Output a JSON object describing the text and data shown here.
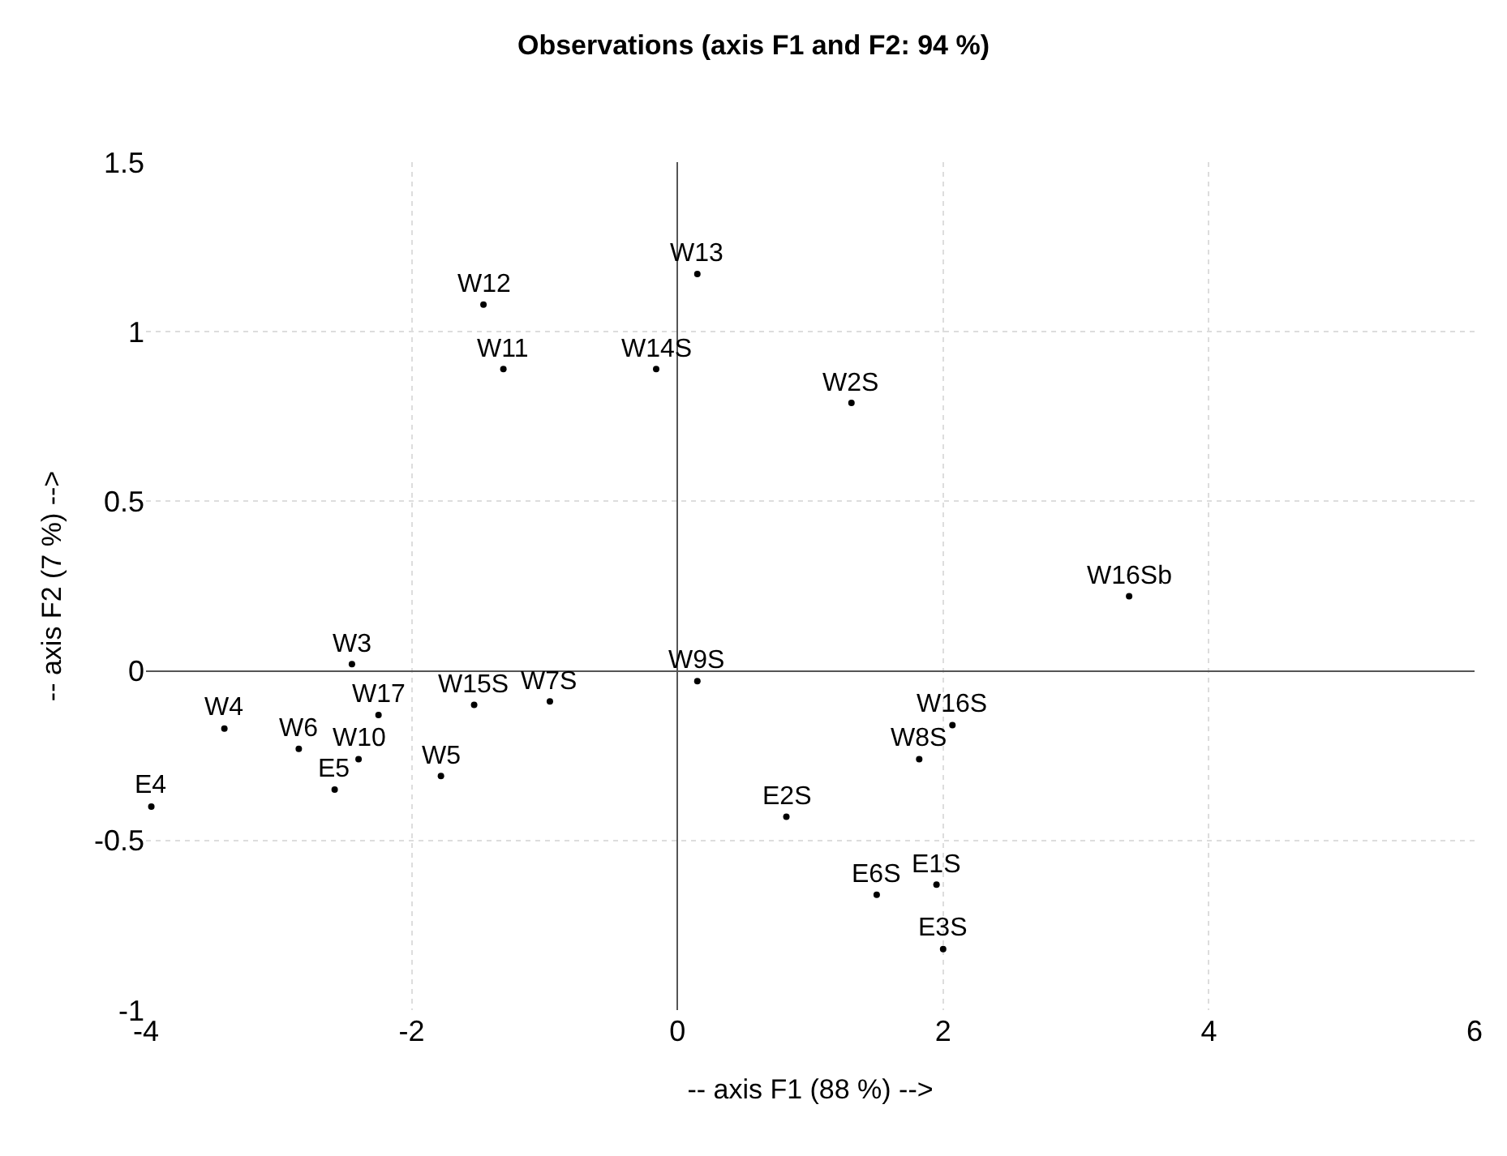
{
  "chart_data": {
    "type": "scatter",
    "title": "Observations (axis F1 and F2: 94 %)",
    "xlabel": "-- axis F1 (88 %) -->",
    "ylabel": "-- axis F2 (7 %) -->",
    "series": [
      {
        "color": "#000000",
        "x": [
          0.15,
          -1.46,
          -1.31,
          -0.16,
          1.31,
          3.4,
          -2.45,
          0.15,
          -3.41,
          -2.25,
          -1.53,
          -0.96,
          -2.85,
          -2.4,
          -1.78,
          -2.58,
          -3.96,
          2.07,
          1.82,
          0.82,
          1.5,
          1.95,
          2.0
        ],
        "values": [
          1.17,
          1.08,
          0.89,
          0.89,
          0.79,
          0.22,
          0.02,
          -0.03,
          -0.17,
          -0.13,
          -0.1,
          -0.09,
          -0.23,
          -0.26,
          -0.31,
          -0.35,
          -0.4,
          -0.16,
          -0.26,
          -0.43,
          -0.66,
          -0.63,
          -0.82
        ]
      }
    ],
    "annotations": [
      {
        "text": "W13",
        "x": 0.15,
        "y": 1.17
      },
      {
        "text": "W12",
        "x": -1.46,
        "y": 1.08
      },
      {
        "text": "W11",
        "x": -1.31,
        "y": 0.89
      },
      {
        "text": "W14S",
        "x": -0.16,
        "y": 0.89
      },
      {
        "text": "W2S",
        "x": 1.31,
        "y": 0.79
      },
      {
        "text": "W16Sb",
        "x": 3.4,
        "y": 0.22
      },
      {
        "text": "W3",
        "x": -2.45,
        "y": 0.02
      },
      {
        "text": "W9S",
        "x": 0.15,
        "y": -0.03
      },
      {
        "text": "W4",
        "x": -3.41,
        "y": -0.17
      },
      {
        "text": "W17",
        "x": -2.25,
        "y": -0.13
      },
      {
        "text": "W15S",
        "x": -1.53,
        "y": -0.1
      },
      {
        "text": "W7S",
        "x": -0.96,
        "y": -0.09
      },
      {
        "text": "W6",
        "x": -2.85,
        "y": -0.23
      },
      {
        "text": "W10",
        "x": -2.4,
        "y": -0.26
      },
      {
        "text": "W5",
        "x": -1.78,
        "y": -0.31
      },
      {
        "text": "E5",
        "x": -2.58,
        "y": -0.35
      },
      {
        "text": "E4",
        "x": -3.96,
        "y": -0.4
      },
      {
        "text": "W16S",
        "x": 2.07,
        "y": -0.16
      },
      {
        "text": "W8S",
        "x": 1.82,
        "y": -0.26
      },
      {
        "text": "E2S",
        "x": 0.82,
        "y": -0.43
      },
      {
        "text": "E6S",
        "x": 1.5,
        "y": -0.66
      },
      {
        "text": "E1S",
        "x": 1.95,
        "y": -0.63
      },
      {
        "text": "E3S",
        "x": 2.0,
        "y": -0.82
      }
    ],
    "xlim": [
      -4,
      6
    ],
    "xticks": [
      -4,
      -2,
      0,
      2,
      4,
      6
    ],
    "ylim": [
      -1,
      1.5
    ],
    "yticks": [
      -1,
      -0.5,
      0,
      0.5,
      1,
      1.5
    ],
    "grid": true,
    "marker": "circle"
  }
}
